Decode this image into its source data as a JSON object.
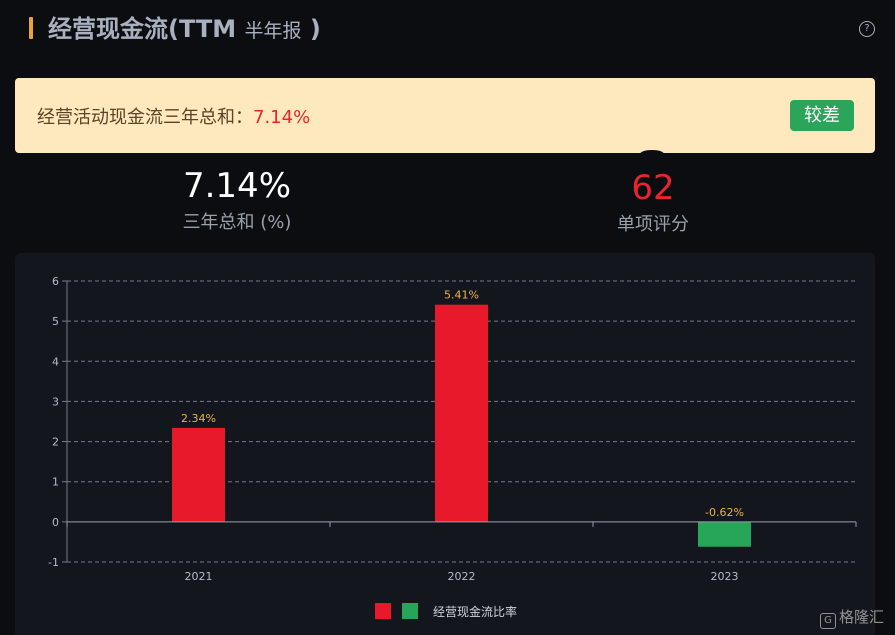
{
  "header": {
    "title": "经营现金流(TTM",
    "subtitle": "半年报",
    "close_paren": " )",
    "help_glyph": "?"
  },
  "banner": {
    "label": "经营活动现金流三年总和：",
    "value": "7.14%",
    "rating": "较差"
  },
  "metrics": [
    {
      "value": "7.14%",
      "label": "三年总和 (%)"
    },
    {
      "value": "62",
      "label": "单项评分"
    }
  ],
  "colors": {
    "positive": "#e8192a",
    "negative": "#27a558",
    "label": "#f0b050",
    "accent": "#e8a23a"
  },
  "chart_data": {
    "type": "bar",
    "categories": [
      "2021",
      "2022",
      "2023"
    ],
    "series": [
      {
        "name": "经营现金流比率",
        "values": [
          2.34,
          5.41,
          -0.62
        ]
      }
    ],
    "data_labels": [
      "2.34%",
      "5.41%",
      "-0.62%"
    ],
    "yticks": [
      6,
      5,
      4,
      3,
      2,
      1,
      0,
      -1
    ],
    "ylim": [
      -1,
      6
    ],
    "grid": true,
    "legend_position": "bottom-center"
  },
  "watermark": {
    "glyph": "G",
    "text": "格隆汇"
  }
}
